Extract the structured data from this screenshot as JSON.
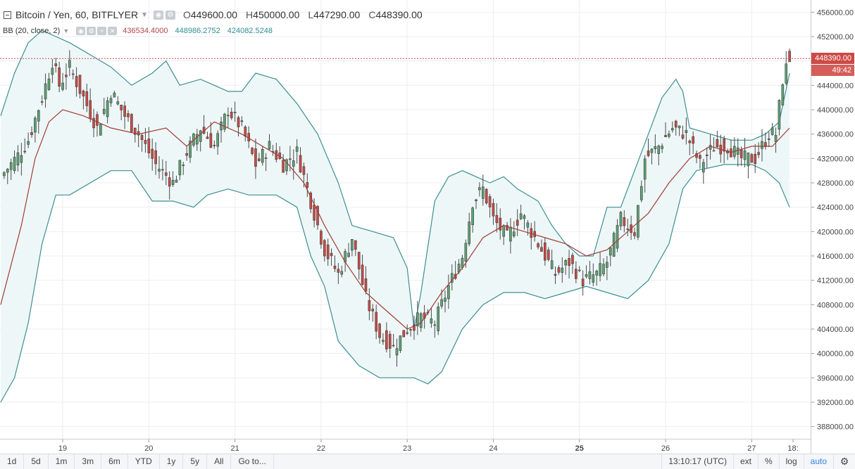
{
  "legend": {
    "title": "Bitcoin / Yen, 60, BITFLYER",
    "open_label": "O",
    "open": "449600.00",
    "high_label": "H",
    "high": "450000.00",
    "low_label": "L",
    "low": "447290.00",
    "close_label": "C",
    "close": "448390.00"
  },
  "indicator": {
    "name": "BB (20, close, 2)",
    "basis": "436534.4000",
    "upper": "448986.2752",
    "lower": "424082.5248"
  },
  "last_price_tag": "448390.00",
  "countdown_tag": "49:42",
  "colors": {
    "up": "#5da274",
    "down": "#cc4a45",
    "band": "#3d8f94",
    "basis": "#a13c38",
    "band_fill": "#eef7f7",
    "price_line": "#cc4a45"
  },
  "toolbar": {
    "ranges": [
      "1d",
      "5d",
      "1m",
      "3m",
      "6m",
      "YTD",
      "1y",
      "5y",
      "All"
    ],
    "goto": "Go to...",
    "time": "13:10:17 (UTC)",
    "ext": "ext",
    "percent": "%",
    "log": "log",
    "auto": "auto"
  },
  "chart_data": {
    "type": "candlestick",
    "symbol": "Bitcoin / Yen",
    "interval": "60",
    "exchange": "BITFLYER",
    "ylim": [
      386000,
      458000
    ],
    "y_ticks": [
      "456000.00",
      "452000.00",
      "448000.00",
      "444000.00",
      "440000.00",
      "436000.00",
      "432000.00",
      "428000.00",
      "424000.00",
      "420000.00",
      "416000.00",
      "412000.00",
      "408000.00",
      "404000.00",
      "400000.00",
      "396000.00",
      "392000.00",
      "388000.00"
    ],
    "x_ticks": [
      "19",
      "20",
      "21",
      "22",
      "23",
      "24",
      "25",
      "26",
      "27",
      "18:"
    ],
    "bold_x_tick": "25",
    "last_price": 448390,
    "close_path": [
      [
        0,
        429000
      ],
      [
        5,
        432500
      ],
      [
        8,
        435000
      ],
      [
        12,
        442000
      ],
      [
        15,
        448000
      ],
      [
        17,
        444000
      ],
      [
        20,
        447000
      ],
      [
        24,
        442000
      ],
      [
        28,
        437000
      ],
      [
        32,
        443000
      ],
      [
        36,
        439000
      ],
      [
        40,
        436000
      ],
      [
        45,
        431000
      ],
      [
        50,
        428000
      ],
      [
        54,
        433000
      ],
      [
        58,
        437000
      ],
      [
        62,
        434000
      ],
      [
        66,
        440000
      ],
      [
        70,
        437000
      ],
      [
        74,
        431000
      ],
      [
        78,
        434000
      ],
      [
        82,
        431000
      ],
      [
        86,
        433000
      ],
      [
        90,
        425000
      ],
      [
        94,
        417000
      ],
      [
        98,
        413000
      ],
      [
        102,
        419000
      ],
      [
        106,
        409000
      ],
      [
        110,
        403000
      ],
      [
        114,
        401000
      ],
      [
        118,
        404000
      ],
      [
        122,
        406000
      ],
      [
        126,
        405000
      ],
      [
        130,
        411000
      ],
      [
        134,
        416000
      ],
      [
        137,
        425000
      ],
      [
        140,
        427000
      ],
      [
        143,
        422000
      ],
      [
        147,
        419000
      ],
      [
        151,
        423000
      ],
      [
        155,
        419000
      ],
      [
        158,
        416000
      ],
      [
        161,
        413000
      ],
      [
        165,
        415000
      ],
      [
        169,
        412000
      ],
      [
        173,
        413000
      ],
      [
        176,
        415000
      ],
      [
        180,
        422000
      ],
      [
        184,
        420000
      ],
      [
        187,
        432000
      ],
      [
        191,
        434000
      ],
      [
        195,
        437000
      ],
      [
        199,
        436000
      ],
      [
        203,
        431000
      ],
      [
        207,
        434000
      ],
      [
        211,
        434000
      ],
      [
        215,
        432000
      ],
      [
        219,
        432000
      ],
      [
        223,
        436000
      ],
      [
        225,
        436000
      ],
      [
        227,
        445000
      ],
      [
        229,
        448390
      ]
    ],
    "bb_upper": [
      [
        0,
        439000
      ],
      [
        4,
        446000
      ],
      [
        8,
        451000
      ],
      [
        12,
        453000
      ],
      [
        16,
        452000
      ],
      [
        20,
        451000
      ],
      [
        26,
        449000
      ],
      [
        32,
        447000
      ],
      [
        38,
        444000
      ],
      [
        44,
        446000
      ],
      [
        48,
        448000
      ],
      [
        52,
        444000
      ],
      [
        58,
        445000
      ],
      [
        62,
        444000
      ],
      [
        66,
        443000
      ],
      [
        70,
        443000
      ],
      [
        74,
        446000
      ],
      [
        80,
        445000
      ],
      [
        86,
        441000
      ],
      [
        92,
        436000
      ],
      [
        98,
        428000
      ],
      [
        102,
        421000
      ],
      [
        108,
        420000
      ],
      [
        114,
        419000
      ],
      [
        118,
        414000
      ],
      [
        120,
        404000
      ],
      [
        122,
        410000
      ],
      [
        126,
        425000
      ],
      [
        130,
        429000
      ],
      [
        134,
        430000
      ],
      [
        138,
        429000
      ],
      [
        142,
        428000
      ],
      [
        146,
        429000
      ],
      [
        150,
        427000
      ],
      [
        156,
        425000
      ],
      [
        160,
        421000
      ],
      [
        164,
        418000
      ],
      [
        168,
        416000
      ],
      [
        172,
        416000
      ],
      [
        176,
        424000
      ],
      [
        180,
        424000
      ],
      [
        184,
        430000
      ],
      [
        188,
        436000
      ],
      [
        192,
        442000
      ],
      [
        196,
        445000
      ],
      [
        198,
        443000
      ],
      [
        200,
        437000
      ],
      [
        206,
        436000
      ],
      [
        212,
        435000
      ],
      [
        218,
        435000
      ],
      [
        222,
        436000
      ],
      [
        226,
        438000
      ],
      [
        229,
        446000
      ]
    ],
    "bb_basis": [
      [
        0,
        408000
      ],
      [
        6,
        421000
      ],
      [
        10,
        432000
      ],
      [
        14,
        438000
      ],
      [
        18,
        440000
      ],
      [
        24,
        439000
      ],
      [
        32,
        437000
      ],
      [
        40,
        436000
      ],
      [
        48,
        437000
      ],
      [
        54,
        434000
      ],
      [
        58,
        436000
      ],
      [
        62,
        438000
      ],
      [
        66,
        437000
      ],
      [
        70,
        436000
      ],
      [
        76,
        434000
      ],
      [
        82,
        432000
      ],
      [
        88,
        428000
      ],
      [
        94,
        421000
      ],
      [
        100,
        415000
      ],
      [
        106,
        410000
      ],
      [
        112,
        407000
      ],
      [
        118,
        404000
      ],
      [
        122,
        405000
      ],
      [
        128,
        410000
      ],
      [
        134,
        414000
      ],
      [
        140,
        419000
      ],
      [
        146,
        421000
      ],
      [
        152,
        420000
      ],
      [
        158,
        419000
      ],
      [
        164,
        418000
      ],
      [
        170,
        416000
      ],
      [
        176,
        417000
      ],
      [
        182,
        420000
      ],
      [
        188,
        423000
      ],
      [
        194,
        428000
      ],
      [
        200,
        432000
      ],
      [
        206,
        434000
      ],
      [
        212,
        433000
      ],
      [
        218,
        434000
      ],
      [
        224,
        434000
      ],
      [
        229,
        437000
      ]
    ],
    "bb_lower": [
      [
        0,
        392000
      ],
      [
        4,
        396000
      ],
      [
        8,
        405000
      ],
      [
        12,
        418000
      ],
      [
        16,
        426000
      ],
      [
        20,
        426000
      ],
      [
        26,
        428000
      ],
      [
        32,
        430000
      ],
      [
        38,
        430000
      ],
      [
        44,
        425000
      ],
      [
        50,
        425000
      ],
      [
        56,
        424000
      ],
      [
        60,
        426000
      ],
      [
        66,
        427000
      ],
      [
        72,
        426000
      ],
      [
        80,
        426000
      ],
      [
        86,
        424000
      ],
      [
        90,
        416000
      ],
      [
        94,
        411000
      ],
      [
        98,
        402000
      ],
      [
        104,
        398000
      ],
      [
        110,
        396000
      ],
      [
        116,
        396000
      ],
      [
        120,
        396000
      ],
      [
        124,
        395000
      ],
      [
        128,
        397000
      ],
      [
        134,
        404000
      ],
      [
        140,
        408000
      ],
      [
        146,
        410000
      ],
      [
        152,
        410000
      ],
      [
        158,
        409000
      ],
      [
        164,
        410000
      ],
      [
        170,
        411000
      ],
      [
        176,
        410000
      ],
      [
        182,
        409000
      ],
      [
        188,
        412000
      ],
      [
        194,
        418000
      ],
      [
        198,
        427000
      ],
      [
        202,
        430000
      ],
      [
        210,
        431000
      ],
      [
        218,
        431000
      ],
      [
        222,
        430000
      ],
      [
        226,
        428000
      ],
      [
        229,
        424000
      ]
    ]
  }
}
